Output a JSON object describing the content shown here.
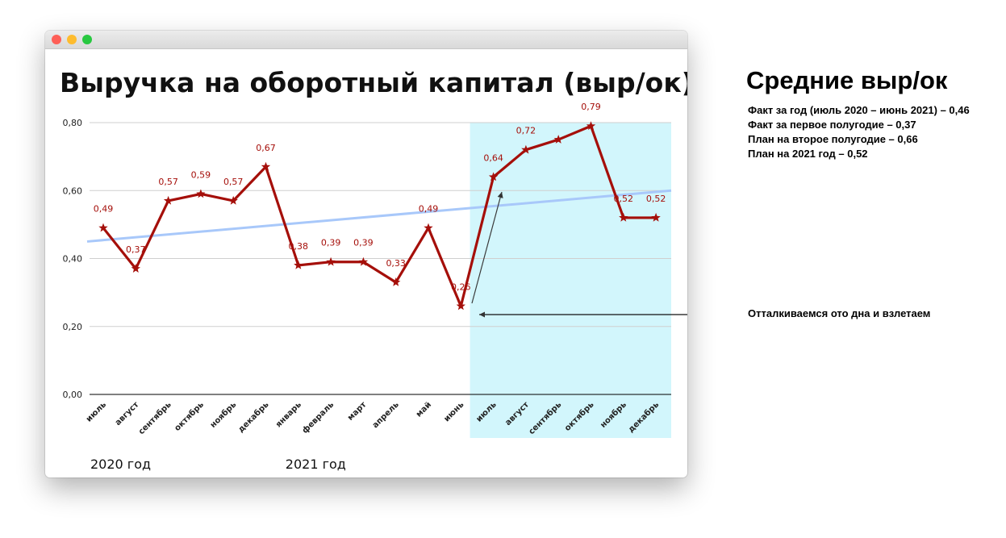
{
  "window": {
    "buttons": [
      {
        "name": "close",
        "color": "#fe5f57"
      },
      {
        "name": "minimize",
        "color": "#febc2e"
      },
      {
        "name": "maximize",
        "color": "#28c840"
      }
    ]
  },
  "chart_data": {
    "type": "line",
    "title": "Выручка на оборотный капитал (выр/ок)",
    "categories": [
      "июль",
      "август",
      "сентябрь",
      "октябрь",
      "ноябрь",
      "декабрь",
      "январь",
      "февраль",
      "март",
      "апрель",
      "май",
      "июнь",
      "июль",
      "август",
      "сентябрь",
      "октябрь",
      "ноябрь",
      "декабрь"
    ],
    "series": [
      {
        "values": [
          0.49,
          0.37,
          0.57,
          0.59,
          0.57,
          0.67,
          0.38,
          0.39,
          0.39,
          0.33,
          0.49,
          0.26,
          0.64,
          0.72,
          0.75,
          0.79,
          0.52,
          0.52
        ],
        "data_labels": [
          "0,49",
          "0,37",
          "0,57",
          "0,59",
          "0,57",
          "0,67",
          "0,38",
          "0,39",
          "0,39",
          "0,33",
          "0,49",
          "0,26",
          "0,64",
          "0,72",
          "",
          "0,79",
          "0,52",
          "0,52"
        ],
        "color": "#a50f0a",
        "marker": "star"
      }
    ],
    "trendline": {
      "start": 0.45,
      "end": 0.6,
      "color": "#a8c8fa"
    },
    "yticks": [
      "0,00",
      "0,20",
      "0,40",
      "0,60",
      "0,80"
    ],
    "ylim": [
      0,
      0.8
    ],
    "grid": true,
    "highlight": {
      "from_index": 12,
      "to_index": 17,
      "color": "#d2f6fc"
    },
    "year_labels": [
      {
        "label": "2020 год",
        "at_index": 0
      },
      {
        "label": "2021 год",
        "at_index": 6
      }
    ],
    "xlabel": "",
    "ylabel": ""
  },
  "sidebar": {
    "title": "Средние выр/ок",
    "lines": [
      "Факт за год (июль 2020 – июнь 2021) – 0,46",
      "Факт за первое полугодие – 0,37",
      "План на второе полугодие – 0,66",
      "План на 2021 год – 0,52"
    ]
  },
  "annotation": {
    "text": "Отталкиваемся ото дна и взлетаем"
  }
}
